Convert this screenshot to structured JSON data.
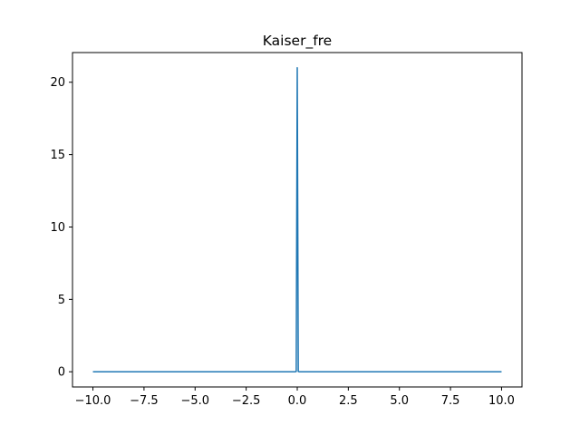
{
  "chart_data": {
    "type": "line",
    "title": "Kaiser_fre",
    "xlabel": "",
    "ylabel": "",
    "xlim": [
      -11.0,
      11.0
    ],
    "ylim": [
      -1.05,
      22.05
    ],
    "x_ticks": [
      -10.0,
      -7.5,
      -5.0,
      -2.5,
      0.0,
      2.5,
      5.0,
      7.5,
      10.0
    ],
    "x_tick_labels": [
      "−10.0",
      "−7.5",
      "−5.0",
      "−2.5",
      "0.0",
      "2.5",
      "5.0",
      "7.5",
      "10.0"
    ],
    "y_ticks": [
      0,
      5,
      10,
      15,
      20
    ],
    "y_tick_labels": [
      "0",
      "5",
      "10",
      "15",
      "20"
    ],
    "grid": false,
    "series": [
      {
        "color": "#1f77b4",
        "x": [
          -10.0,
          -0.1,
          -0.05,
          0.0,
          0.05,
          0.1,
          10.0
        ],
        "y": [
          0,
          0,
          0.02,
          21.0,
          0.02,
          0,
          0
        ]
      }
    ]
  }
}
